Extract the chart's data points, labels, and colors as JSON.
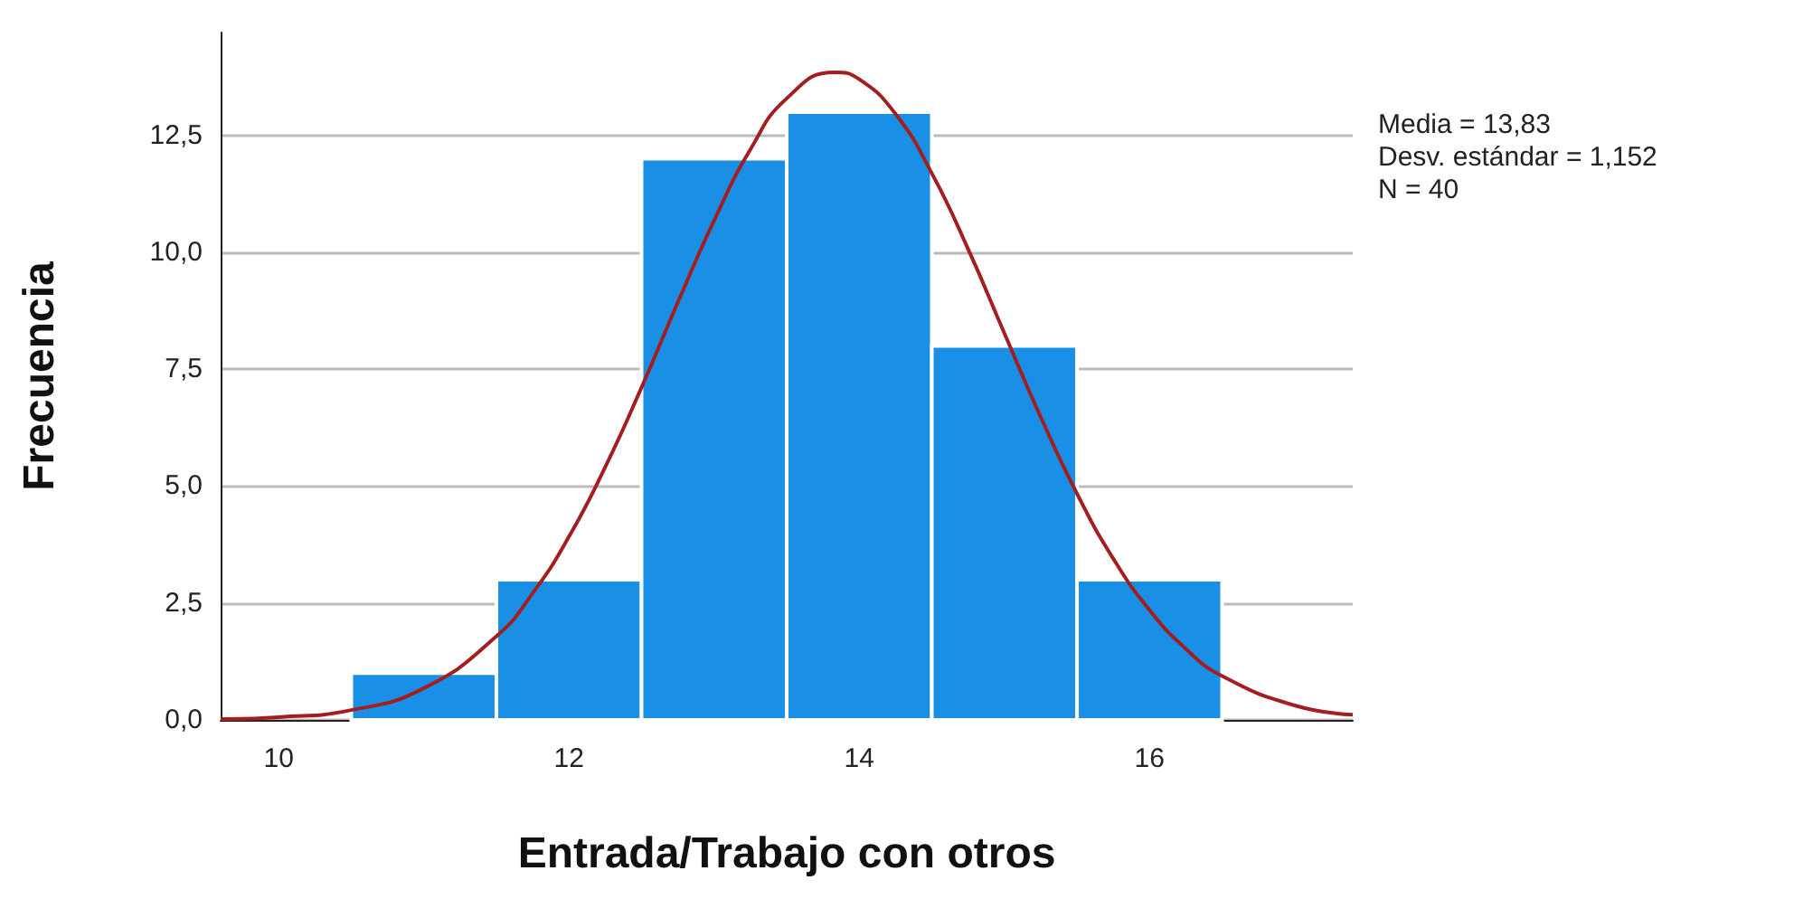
{
  "chart_data": {
    "type": "histogram",
    "xlabel": "Entrada/Trabajo con otros",
    "ylabel": "Frecuencia",
    "bins": [
      10.5,
      11.5,
      12.5,
      13.5,
      14.5,
      15.5,
      16.5
    ],
    "values": [
      1,
      3,
      12,
      13,
      8,
      3
    ],
    "color": "#1a8fe6",
    "series": [
      {
        "type": "line",
        "color": "#a31f1f",
        "marker": "none",
        "line_style": "solid",
        "x": [
          9.6,
          10,
          10.5,
          11,
          11.5,
          11.75,
          12,
          12.25,
          12.5,
          12.75,
          13,
          13.25,
          13.5,
          13.83,
          14,
          14.25,
          14.5,
          14.75,
          15,
          15.25,
          15.5,
          15.75,
          16,
          16.25,
          16.5,
          17,
          17.4
        ],
        "values": [
          0.02,
          0.06,
          0.21,
          0.68,
          1.79,
          2.71,
          3.92,
          5.41,
          7.11,
          8.93,
          10.68,
          12.2,
          13.29,
          13.85,
          13.7,
          12.96,
          11.69,
          10.07,
          8.27,
          6.48,
          4.84,
          3.45,
          2.35,
          1.52,
          0.94,
          0.31,
          0.11
        ]
      }
    ],
    "xlim": [
      9.6,
      17.4
    ],
    "xticks": [
      10,
      12,
      14,
      16
    ],
    "ylim": [
      0,
      14.7
    ],
    "yticks": [
      {
        "value": 0,
        "label": "0,0"
      },
      {
        "value": 2.5,
        "label": "2,5"
      },
      {
        "value": 5,
        "label": "5,0"
      },
      {
        "value": 7.5,
        "label": "7,5"
      },
      {
        "value": 10,
        "label": "10,0"
      },
      {
        "value": 12.5,
        "label": "12,5"
      }
    ],
    "grid": "y",
    "annotations": [
      "Media = 13,83",
      "Desv. estándar = 1,152",
      "N = 40"
    ]
  }
}
